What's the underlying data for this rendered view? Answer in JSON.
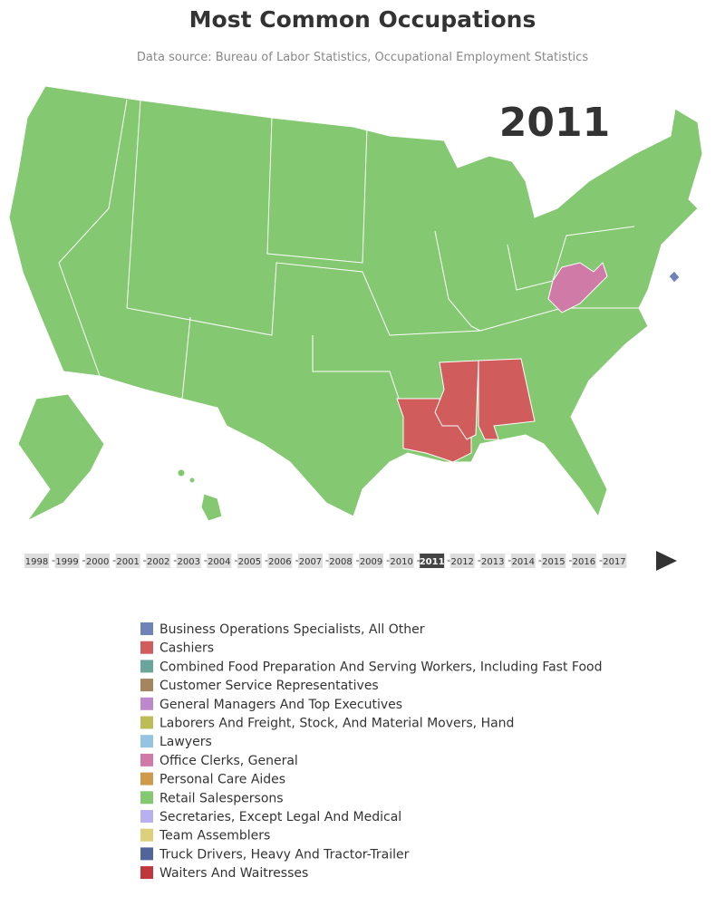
{
  "title": "Most Common Occupations",
  "subtitle": "Data source: Bureau of Labor Statistics, Occupational Employment Statistics",
  "current_year": 2011,
  "timeline": [
    1998,
    1999,
    2000,
    2001,
    2002,
    2003,
    2004,
    2005,
    2006,
    2007,
    2008,
    2009,
    2010,
    2011,
    2012,
    2013,
    2014,
    2015,
    2016,
    2017
  ],
  "legend": [
    {
      "name": "Business Operations Specialists, All Other",
      "color": "#6f83b8"
    },
    {
      "name": "Cashiers",
      "color": "#d05c5c"
    },
    {
      "name": "Combined Food Preparation And Serving Workers, Including Fast Food",
      "color": "#6aa59c"
    },
    {
      "name": "Customer Service Representatives",
      "color": "#a58460"
    },
    {
      "name": "General Managers And Top Executives",
      "color": "#bd88cc"
    },
    {
      "name": "Laborers And Freight, Stock, And Material Movers, Hand",
      "color": "#bcbc58"
    },
    {
      "name": "Lawyers",
      "color": "#94c4e0"
    },
    {
      "name": "Office Clerks, General",
      "color": "#d07aa8"
    },
    {
      "name": "Personal Care Aides",
      "color": "#d09a4c"
    },
    {
      "name": "Retail Salespersons",
      "color": "#84c872"
    },
    {
      "name": "Secretaries, Except Legal And Medical",
      "color": "#b8b0f0"
    },
    {
      "name": "Team Assemblers",
      "color": "#dcd07c"
    },
    {
      "name": "Truck Drivers, Heavy And Tractor-Trailer",
      "color": "#52649c"
    },
    {
      "name": "Waiters And Waitresses",
      "color": "#c0383c"
    }
  ]
}
